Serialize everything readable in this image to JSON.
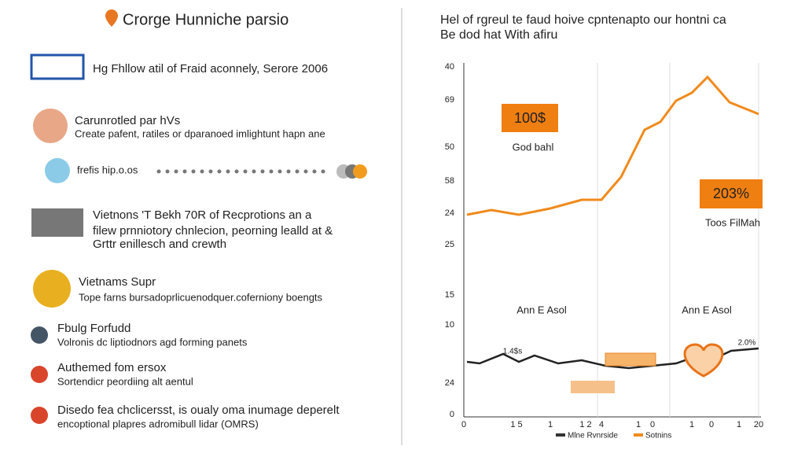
{
  "header": {
    "title": "Crorge Hunniche parsio"
  },
  "items": [
    {
      "lines": [
        "Hg Fhllow atil of Fraid aconnely, Serore 2006"
      ]
    },
    {
      "title": "Carunrotled par hVs",
      "lines": [
        "Create pafent, ratiles or dparanoed imlightunt hapn ane"
      ]
    },
    {
      "lines": [
        "frefis hip.o.os"
      ]
    },
    {
      "lines": [
        "Vietnons 'T Bekh 70R of Recprotions an a",
        "filew prnniotory chnlecion, peorning lealld at &",
        "Grttr enillesch and crewth"
      ]
    },
    {
      "title": "Vietnams Supr",
      "lines": [
        "Tope farns bursadoprlicuenodquer.coferniony boengts"
      ]
    },
    {
      "title": "Fbulg Forfudd",
      "lines": [
        "Volronis dc liptiodnors agd forming panets"
      ]
    },
    {
      "title": "Authemed fom ersox",
      "lines": [
        "Sortendicr peordiing alt aentul"
      ]
    },
    {
      "title": "Disedo fea chclicersst, is oualy oma inumage deperelt",
      "lines": [
        "encoptional plapres adromibull lidar (OMRS)"
      ]
    }
  ],
  "panel": {
    "heading": [
      "Hel of rgreul te faud hoive cpntenapto our hontni ca",
      "Be dod hat With afiru"
    ],
    "y_labels": [
      "40",
      "69",
      "50",
      "58",
      "24",
      "25",
      "15",
      "10",
      "24",
      "0"
    ],
    "x_labels": [
      "0",
      "1 5",
      "1",
      "1 2",
      "4",
      "1",
      "0",
      "1",
      "0",
      "1",
      "20"
    ],
    "callouts": [
      "100$",
      "God bahl",
      "203%",
      "Toos FilMah",
      "Ann E Asol",
      "Ann E Asol",
      "1.4$s",
      "2.0%"
    ],
    "legend": [
      "Mlne Rvnrside",
      "Sotnins"
    ]
  }
}
